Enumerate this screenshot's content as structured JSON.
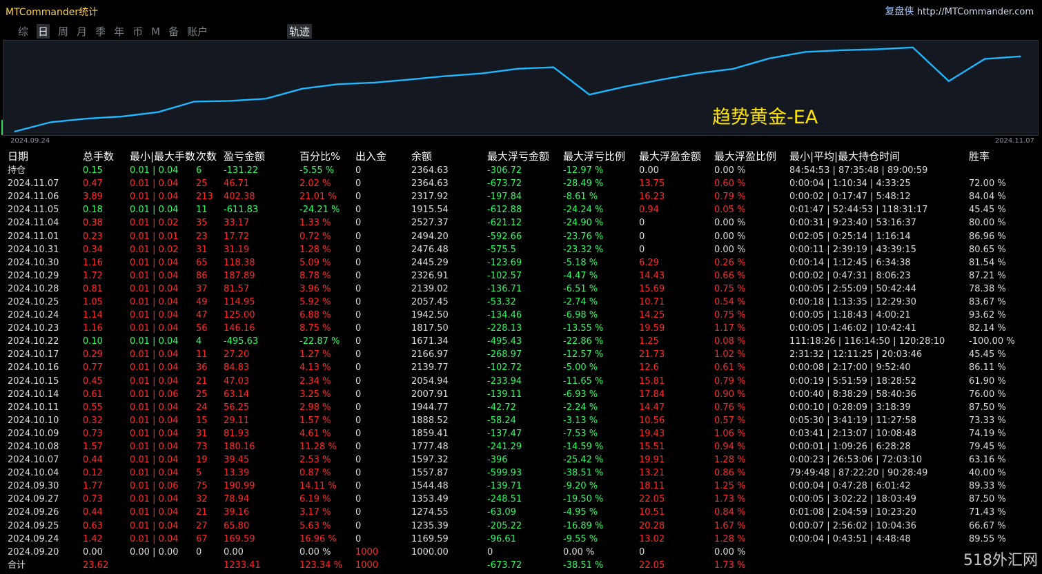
{
  "app": {
    "title": "MTCommander统计",
    "brand": "复盘侠",
    "url": "http://MTCommander.com"
  },
  "tabs": [
    {
      "label": "综",
      "active": false
    },
    {
      "label": "日",
      "active": true
    },
    {
      "label": "周",
      "active": false
    },
    {
      "label": "月",
      "active": false
    },
    {
      "label": "季",
      "active": false
    },
    {
      "label": "年",
      "active": false
    },
    {
      "label": "币",
      "active": false
    },
    {
      "label": "M",
      "active": false
    },
    {
      "label": "备",
      "active": false
    },
    {
      "label": "账户",
      "active": false
    }
  ],
  "track_tab": "轨迹",
  "chart": {
    "start_date": "2024.09.24",
    "end_date": "2024.11.07",
    "label": "趋势黄金-EA",
    "line_color": "#1fb7ff",
    "chart_data": {
      "type": "line",
      "series": [
        {
          "values": [
            1000.0,
            1169.59,
            1235.39,
            1274.55,
            1353.49,
            1544.48,
            1557.87,
            1597.32,
            1777.48,
            1859.41,
            1888.52,
            1944.77,
            2007.91,
            2054.94,
            2139.77,
            2166.97,
            1671.34,
            1817.5,
            1942.5,
            2057.45,
            2139.02,
            2326.91,
            2445.29,
            2476.48,
            2494.2,
            2527.37,
            1915.54,
            2317.92,
            2364.63
          ]
        }
      ]
    }
  },
  "table": {
    "headers": [
      "日期",
      "总手数",
      "最小|最大手数",
      "次数",
      "盈亏金额",
      "百分比%",
      "出入金",
      "余额",
      "最大浮亏金额",
      "最大浮亏比例",
      "最大浮盈金额",
      "最大浮盈比例",
      "最小|平均|最大持仓时间",
      "胜率"
    ],
    "rows": [
      {
        "cells": [
          "持仓",
          "0.15",
          "0.01 | 0.04",
          "6",
          "-131.22",
          "-5.55 %",
          "0",
          "2364.63",
          "-306.72",
          "-12.97 %",
          "0.00",
          "0.00 %",
          "84:54:53 | 87:35:48 | 89:00:59",
          ""
        ],
        "colors": [
          "w",
          "g",
          "g",
          "g",
          "g",
          "g",
          "w",
          "w",
          "g",
          "g",
          "w",
          "w",
          "w",
          "w"
        ]
      },
      {
        "cells": [
          "2024.11.07",
          "0.47",
          "0.01 | 0.04",
          "25",
          "46.71",
          "2.02 %",
          "0",
          "2364.63",
          "-673.72",
          "-28.49 %",
          "13.75",
          "0.60 %",
          "0:00:04 | 1:10:34 | 4:33:25",
          "72.00 %"
        ],
        "colors": [
          "w",
          "r",
          "r",
          "r",
          "r",
          "r",
          "w",
          "w",
          "g",
          "g",
          "r",
          "r",
          "w",
          "w"
        ]
      },
      {
        "cells": [
          "2024.11.06",
          "3.89",
          "0.01 | 0.04",
          "213",
          "402.38",
          "21.01 %",
          "0",
          "2317.92",
          "-197.84",
          "-8.61 %",
          "16.23",
          "0.79 %",
          "0:00:02 | 0:17:47 | 5:48:12",
          "84.04 %"
        ],
        "colors": [
          "w",
          "r",
          "r",
          "r",
          "r",
          "r",
          "w",
          "w",
          "g",
          "g",
          "r",
          "r",
          "w",
          "w"
        ]
      },
      {
        "cells": [
          "2024.11.05",
          "0.18",
          "0.01 | 0.04",
          "11",
          "-611.83",
          "-24.21 %",
          "0",
          "1915.54",
          "-612.88",
          "-24.24 %",
          "0.94",
          "0.05 %",
          "0:01:47 | 52:44:53 | 118:31:17",
          "45.45 %"
        ],
        "colors": [
          "w",
          "g",
          "g",
          "g",
          "g",
          "g",
          "w",
          "w",
          "g",
          "g",
          "r",
          "r",
          "w",
          "w"
        ]
      },
      {
        "cells": [
          "2024.11.04",
          "0.38",
          "0.01 | 0.02",
          "35",
          "33.17",
          "1.33 %",
          "0",
          "2527.37",
          "-621.12",
          "-24.90 %",
          "0",
          "0.00 %",
          "0:00:31 | 9:23:40 | 53:16:37",
          "80.00 %"
        ],
        "colors": [
          "w",
          "r",
          "r",
          "r",
          "r",
          "r",
          "w",
          "w",
          "g",
          "g",
          "w",
          "w",
          "w",
          "w"
        ]
      },
      {
        "cells": [
          "2024.11.01",
          "0.23",
          "0.01 | 0.01",
          "23",
          "17.72",
          "0.72 %",
          "0",
          "2494.20",
          "-592.66",
          "-23.76 %",
          "0",
          "0.00 %",
          "0:02:05 | 0:25:14 | 1:16:14",
          "86.96 %"
        ],
        "colors": [
          "w",
          "r",
          "r",
          "r",
          "r",
          "r",
          "w",
          "w",
          "g",
          "g",
          "w",
          "w",
          "w",
          "w"
        ]
      },
      {
        "cells": [
          "2024.10.31",
          "0.34",
          "0.01 | 0.02",
          "31",
          "31.19",
          "1.28 %",
          "0",
          "2476.48",
          "-575.5",
          "-23.32 %",
          "0",
          "0.00 %",
          "0:00:11 | 2:39:19 | 43:39:15",
          "80.65 %"
        ],
        "colors": [
          "w",
          "r",
          "r",
          "r",
          "r",
          "r",
          "w",
          "w",
          "g",
          "g",
          "w",
          "w",
          "w",
          "w"
        ]
      },
      {
        "cells": [
          "2024.10.30",
          "1.16",
          "0.01 | 0.04",
          "65",
          "118.38",
          "5.09 %",
          "0",
          "2445.29",
          "-123.69",
          "-5.18 %",
          "6.29",
          "0.26 %",
          "0:00:14 | 1:12:45 | 6:34:38",
          "81.54 %"
        ],
        "colors": [
          "w",
          "r",
          "r",
          "r",
          "r",
          "r",
          "w",
          "w",
          "g",
          "g",
          "r",
          "r",
          "w",
          "w"
        ]
      },
      {
        "cells": [
          "2024.10.29",
          "1.72",
          "0.01 | 0.04",
          "86",
          "187.89",
          "8.78 %",
          "0",
          "2326.91",
          "-102.57",
          "-4.47 %",
          "14.43",
          "0.66 %",
          "0:00:02 | 0:47:31 | 8:06:23",
          "87.21 %"
        ],
        "colors": [
          "w",
          "r",
          "r",
          "r",
          "r",
          "r",
          "w",
          "w",
          "g",
          "g",
          "r",
          "r",
          "w",
          "w"
        ]
      },
      {
        "cells": [
          "2024.10.28",
          "0.81",
          "0.01 | 0.04",
          "37",
          "81.57",
          "3.96 %",
          "0",
          "2139.02",
          "-136.71",
          "-6.51 %",
          "15.69",
          "0.75 %",
          "0:00:05 | 2:55:09 | 50:42:44",
          "78.38 %"
        ],
        "colors": [
          "w",
          "r",
          "r",
          "r",
          "r",
          "r",
          "w",
          "w",
          "g",
          "g",
          "r",
          "r",
          "w",
          "w"
        ]
      },
      {
        "cells": [
          "2024.10.25",
          "1.05",
          "0.01 | 0.04",
          "49",
          "114.95",
          "5.92 %",
          "0",
          "2057.45",
          "-53.32",
          "-2.74 %",
          "10.71",
          "0.54 %",
          "0:00:18 | 1:13:35 | 12:29:30",
          "83.67 %"
        ],
        "colors": [
          "w",
          "r",
          "r",
          "r",
          "r",
          "r",
          "w",
          "w",
          "g",
          "g",
          "r",
          "r",
          "w",
          "w"
        ]
      },
      {
        "cells": [
          "2024.10.24",
          "1.14",
          "0.01 | 0.04",
          "47",
          "125.00",
          "6.88 %",
          "0",
          "1942.50",
          "-134.46",
          "-6.98 %",
          "14.25",
          "0.75 %",
          "0:00:05 | 1:18:43 | 4:00:21",
          "93.62 %"
        ],
        "colors": [
          "w",
          "r",
          "r",
          "r",
          "r",
          "r",
          "w",
          "w",
          "g",
          "g",
          "r",
          "r",
          "w",
          "w"
        ]
      },
      {
        "cells": [
          "2024.10.23",
          "1.16",
          "0.01 | 0.04",
          "56",
          "146.16",
          "8.75 %",
          "0",
          "1817.50",
          "-228.13",
          "-13.55 %",
          "19.59",
          "1.17 %",
          "0:00:05 | 1:46:02 | 10:42:41",
          "82.14 %"
        ],
        "colors": [
          "w",
          "r",
          "r",
          "r",
          "r",
          "r",
          "w",
          "w",
          "g",
          "g",
          "r",
          "r",
          "w",
          "w"
        ]
      },
      {
        "cells": [
          "2024.10.22",
          "0.10",
          "0.01 | 0.04",
          "4",
          "-495.63",
          "-22.87 %",
          "0",
          "1671.34",
          "-495.43",
          "-22.86 %",
          "1.25",
          "0.08 %",
          "111:18:26 | 116:14:50 | 120:28:10",
          "-100.00 %"
        ],
        "colors": [
          "w",
          "g",
          "g",
          "g",
          "g",
          "g",
          "w",
          "w",
          "g",
          "g",
          "r",
          "r",
          "w",
          "w"
        ]
      },
      {
        "cells": [
          "2024.10.17",
          "0.29",
          "0.01 | 0.04",
          "11",
          "27.20",
          "1.27 %",
          "0",
          "2166.97",
          "-268.97",
          "-12.57 %",
          "21.73",
          "1.02 %",
          "2:31:32 | 12:11:25 | 20:03:46",
          "45.45 %"
        ],
        "colors": [
          "w",
          "r",
          "r",
          "r",
          "r",
          "r",
          "w",
          "w",
          "g",
          "g",
          "r",
          "r",
          "w",
          "w"
        ]
      },
      {
        "cells": [
          "2024.10.16",
          "0.77",
          "0.01 | 0.04",
          "36",
          "84.83",
          "4.13 %",
          "0",
          "2139.77",
          "-102.72",
          "-5.00 %",
          "12.6",
          "0.61 %",
          "0:00:08 | 2:17:00 | 9:52:40",
          "86.11 %"
        ],
        "colors": [
          "w",
          "r",
          "r",
          "r",
          "r",
          "r",
          "w",
          "w",
          "g",
          "g",
          "r",
          "r",
          "w",
          "w"
        ]
      },
      {
        "cells": [
          "2024.10.15",
          "0.45",
          "0.01 | 0.04",
          "21",
          "47.03",
          "2.34 %",
          "0",
          "2054.94",
          "-233.94",
          "-11.65 %",
          "15.81",
          "0.79 %",
          "0:00:19 | 5:51:59 | 18:28:52",
          "61.90 %"
        ],
        "colors": [
          "w",
          "r",
          "r",
          "r",
          "r",
          "r",
          "w",
          "w",
          "g",
          "g",
          "r",
          "r",
          "w",
          "w"
        ]
      },
      {
        "cells": [
          "2024.10.14",
          "0.61",
          "0.01 | 0.06",
          "25",
          "63.14",
          "3.25 %",
          "0",
          "2007.91",
          "-139.11",
          "-6.93 %",
          "17.84",
          "0.90 %",
          "0:00:40 | 8:38:29 | 58:40:36",
          "76.00 %"
        ],
        "colors": [
          "w",
          "r",
          "r",
          "r",
          "r",
          "r",
          "w",
          "w",
          "g",
          "g",
          "r",
          "r",
          "w",
          "w"
        ]
      },
      {
        "cells": [
          "2024.10.11",
          "0.55",
          "0.01 | 0.04",
          "24",
          "56.25",
          "2.98 %",
          "0",
          "1944.77",
          "-42.72",
          "-2.24 %",
          "14.47",
          "0.76 %",
          "0:00:10 | 0:28:09 | 3:18:39",
          "87.50 %"
        ],
        "colors": [
          "w",
          "r",
          "r",
          "r",
          "r",
          "r",
          "w",
          "w",
          "g",
          "g",
          "r",
          "r",
          "w",
          "w"
        ]
      },
      {
        "cells": [
          "2024.10.10",
          "0.32",
          "0.01 | 0.04",
          "15",
          "29.11",
          "1.57 %",
          "0",
          "1888.52",
          "-58.24",
          "-3.13 %",
          "10.56",
          "0.57 %",
          "0:05:30 | 3:41:19 | 11:27:58",
          "73.33 %"
        ],
        "colors": [
          "w",
          "r",
          "r",
          "r",
          "r",
          "r",
          "w",
          "w",
          "g",
          "g",
          "r",
          "r",
          "w",
          "w"
        ]
      },
      {
        "cells": [
          "2024.10.09",
          "0.73",
          "0.01 | 0.04",
          "31",
          "81.93",
          "4.61 %",
          "0",
          "1859.41",
          "-137.47",
          "-7.53 %",
          "19.43",
          "1.06 %",
          "0:03:41 | 2:13:07 | 10:08:48",
          "74.19 %"
        ],
        "colors": [
          "w",
          "r",
          "r",
          "r",
          "r",
          "r",
          "w",
          "w",
          "g",
          "g",
          "r",
          "r",
          "w",
          "w"
        ]
      },
      {
        "cells": [
          "2024.10.08",
          "1.57",
          "0.01 | 0.04",
          "73",
          "180.16",
          "11.28 %",
          "0",
          "1777.48",
          "-241.29",
          "-14.59 %",
          "15.51",
          "0.94 %",
          "0:00:01 | 1:09:26 | 6:28:28",
          "79.45 %"
        ],
        "colors": [
          "w",
          "r",
          "r",
          "r",
          "r",
          "r",
          "w",
          "w",
          "g",
          "g",
          "r",
          "r",
          "w",
          "w"
        ]
      },
      {
        "cells": [
          "2024.10.07",
          "0.44",
          "0.01 | 0.04",
          "19",
          "39.45",
          "2.53 %",
          "0",
          "1597.32",
          "-396",
          "-25.42 %",
          "19.91",
          "1.28 %",
          "0:00:23 | 26:53:06 | 72:03:10",
          "63.16 %"
        ],
        "colors": [
          "w",
          "r",
          "r",
          "r",
          "r",
          "r",
          "w",
          "w",
          "g",
          "g",
          "r",
          "r",
          "w",
          "w"
        ]
      },
      {
        "cells": [
          "2024.10.04",
          "0.12",
          "0.01 | 0.04",
          "5",
          "13.39",
          "0.87 %",
          "0",
          "1557.87",
          "-599.93",
          "-38.51 %",
          "13.21",
          "0.86 %",
          "79:49:48 | 87:22:20 | 90:28:49",
          "40.00 %"
        ],
        "colors": [
          "w",
          "r",
          "r",
          "r",
          "r",
          "r",
          "w",
          "w",
          "g",
          "g",
          "r",
          "r",
          "w",
          "w"
        ]
      },
      {
        "cells": [
          "2024.09.30",
          "1.77",
          "0.01 | 0.06",
          "75",
          "190.99",
          "14.11 %",
          "0",
          "1544.48",
          "-139.71",
          "-9.20 %",
          "18.11",
          "1.25 %",
          "0:00:04 | 0:47:28 | 6:01:42",
          "89.33 %"
        ],
        "colors": [
          "w",
          "r",
          "r",
          "r",
          "r",
          "r",
          "w",
          "w",
          "g",
          "g",
          "r",
          "r",
          "w",
          "w"
        ]
      },
      {
        "cells": [
          "2024.09.27",
          "0.73",
          "0.01 | 0.04",
          "32",
          "78.94",
          "6.19 %",
          "0",
          "1353.49",
          "-248.51",
          "-19.50 %",
          "22.05",
          "1.73 %",
          "0:00:05 | 3:02:22 | 18:03:49",
          "87.50 %"
        ],
        "colors": [
          "w",
          "r",
          "r",
          "r",
          "r",
          "r",
          "w",
          "w",
          "g",
          "g",
          "r",
          "r",
          "w",
          "w"
        ]
      },
      {
        "cells": [
          "2024.09.26",
          "0.44",
          "0.01 | 0.04",
          "21",
          "39.16",
          "3.17 %",
          "0",
          "1274.55",
          "-63.09",
          "-4.95 %",
          "10.51",
          "0.84 %",
          "0:01:08 | 2:04:59 | 10:23:20",
          "71.43 %"
        ],
        "colors": [
          "w",
          "r",
          "r",
          "r",
          "r",
          "r",
          "w",
          "w",
          "g",
          "g",
          "r",
          "r",
          "w",
          "w"
        ]
      },
      {
        "cells": [
          "2024.09.25",
          "0.63",
          "0.01 | 0.04",
          "27",
          "65.80",
          "5.63 %",
          "0",
          "1235.39",
          "-205.22",
          "-16.89 %",
          "20.28",
          "1.67 %",
          "0:00:07 | 2:56:02 | 10:04:36",
          "66.67 %"
        ],
        "colors": [
          "w",
          "r",
          "r",
          "r",
          "r",
          "r",
          "w",
          "w",
          "g",
          "g",
          "r",
          "r",
          "w",
          "w"
        ]
      },
      {
        "cells": [
          "2024.09.24",
          "1.42",
          "0.01 | 0.04",
          "67",
          "169.59",
          "16.96 %",
          "0",
          "1169.59",
          "-96.61",
          "-9.55 %",
          "13.02",
          "1.28 %",
          "0:00:04 | 0:43:51 | 4:48:48",
          "89.55 %"
        ],
        "colors": [
          "w",
          "r",
          "r",
          "r",
          "r",
          "r",
          "w",
          "w",
          "g",
          "g",
          "r",
          "r",
          "w",
          "w"
        ]
      },
      {
        "cells": [
          "2024.09.20",
          "0.00",
          "0.00 | 0.00",
          "0",
          "0.00",
          "0.00 %",
          "1000",
          "1000.00",
          "0",
          "0.00 %",
          "0",
          "0.00 %",
          "",
          ""
        ],
        "colors": [
          "w",
          "w",
          "w",
          "w",
          "w",
          "w",
          "r",
          "w",
          "w",
          "w",
          "w",
          "w",
          "w",
          "w"
        ]
      },
      {
        "cells": [
          "合计",
          "23.62",
          "",
          "",
          "1233.41",
          "123.34 %",
          "1000",
          "",
          "-673.72",
          "-38.51 %",
          "22.05",
          "1.73 %",
          "",
          ""
        ],
        "colors": [
          "w",
          "r",
          "w",
          "w",
          "r",
          "r",
          "r",
          "w",
          "g",
          "g",
          "r",
          "r",
          "w",
          "w"
        ]
      }
    ]
  },
  "watermark": "518外汇网"
}
